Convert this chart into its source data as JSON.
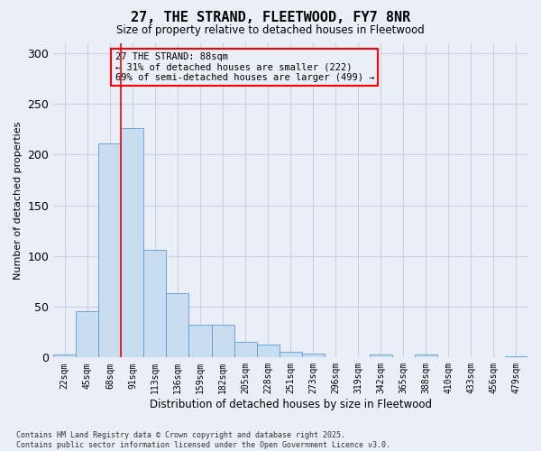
{
  "title": "27, THE STRAND, FLEETWOOD, FY7 8NR",
  "subtitle": "Size of property relative to detached houses in Fleetwood",
  "xlabel": "Distribution of detached houses by size in Fleetwood",
  "ylabel": "Number of detached properties",
  "footer_line1": "Contains HM Land Registry data © Crown copyright and database right 2025.",
  "footer_line2": "Contains public sector information licensed under the Open Government Licence v3.0.",
  "annotation_title": "27 THE STRAND: 88sqm",
  "annotation_line1": "← 31% of detached houses are smaller (222)",
  "annotation_line2": "69% of semi-detached houses are larger (499) →",
  "bar_labels": [
    "22sqm",
    "45sqm",
    "68sqm",
    "91sqm",
    "113sqm",
    "136sqm",
    "159sqm",
    "182sqm",
    "205sqm",
    "228sqm",
    "251sqm",
    "273sqm",
    "296sqm",
    "319sqm",
    "342sqm",
    "365sqm",
    "388sqm",
    "410sqm",
    "433sqm",
    "456sqm",
    "479sqm"
  ],
  "bar_values": [
    3,
    46,
    211,
    226,
    106,
    63,
    32,
    32,
    15,
    13,
    6,
    4,
    0,
    0,
    3,
    0,
    3,
    0,
    0,
    0,
    1
  ],
  "bar_color": "#c9ddf0",
  "bar_edge_color": "#5b9bd5",
  "grid_color": "#c8d4e4",
  "background_color": "#eaeff7",
  "red_line_bar_index": 3,
  "ylim": [
    0,
    310
  ],
  "yticks": [
    0,
    50,
    100,
    150,
    200,
    250,
    300
  ]
}
